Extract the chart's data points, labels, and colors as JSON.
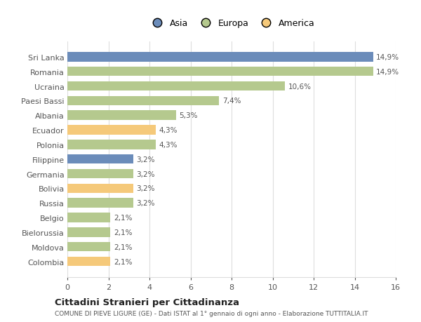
{
  "categories": [
    "Sri Lanka",
    "Romania",
    "Ucraina",
    "Paesi Bassi",
    "Albania",
    "Ecuador",
    "Polonia",
    "Filippine",
    "Germania",
    "Bolivia",
    "Russia",
    "Belgio",
    "Bielorussia",
    "Moldova",
    "Colombia"
  ],
  "values": [
    14.9,
    14.9,
    10.6,
    7.4,
    5.3,
    4.3,
    4.3,
    3.2,
    3.2,
    3.2,
    3.2,
    2.1,
    2.1,
    2.1,
    2.1
  ],
  "labels": [
    "14,9%",
    "14,9%",
    "10,6%",
    "7,4%",
    "5,3%",
    "4,3%",
    "4,3%",
    "3,2%",
    "3,2%",
    "3,2%",
    "3,2%",
    "2,1%",
    "2,1%",
    "2,1%",
    "2,1%"
  ],
  "continents": [
    "Asia",
    "Europa",
    "Europa",
    "Europa",
    "Europa",
    "America",
    "Europa",
    "Asia",
    "Europa",
    "America",
    "Europa",
    "Europa",
    "Europa",
    "Europa",
    "America"
  ],
  "colors": {
    "Asia": "#6b8cba",
    "Europa": "#b5c98e",
    "America": "#f5c97a"
  },
  "legend_order": [
    "Asia",
    "Europa",
    "America"
  ],
  "xlim": [
    0,
    16
  ],
  "xticks": [
    0,
    2,
    4,
    6,
    8,
    10,
    12,
    14,
    16
  ],
  "title": "Cittadini Stranieri per Cittadinanza",
  "subtitle": "COMUNE DI PIEVE LIGURE (GE) - Dati ISTAT al 1° gennaio di ogni anno - Elaborazione TUTTITALIA.IT",
  "background_color": "#ffffff",
  "grid_color": "#dddddd",
  "bar_height": 0.65
}
